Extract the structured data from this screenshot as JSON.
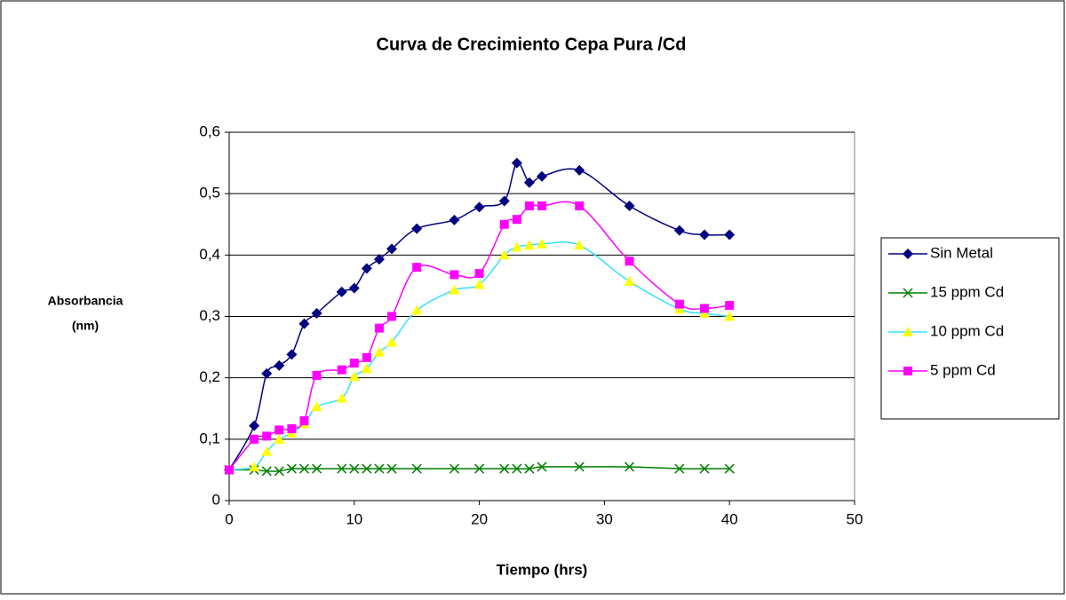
{
  "chart_data": {
    "type": "line",
    "smooth": true,
    "title": "Curva de Crecimiento Cepa Pura /Cd",
    "xlabel": "Tiempo (hrs)",
    "ylabel": [
      "Absorbancia",
      "(nm)"
    ],
    "x": [
      0,
      2,
      3,
      4,
      5,
      6,
      7,
      9,
      10,
      11,
      12,
      13,
      15,
      18,
      20,
      22,
      23,
      24,
      25,
      28,
      32,
      36,
      38,
      40
    ],
    "series": [
      {
        "name": "Sin Metal",
        "color": "#000080",
        "marker": "diamond",
        "values": [
          0.05,
          0.122,
          0.207,
          0.22,
          0.238,
          0.288,
          0.305,
          0.34,
          0.346,
          0.378,
          0.393,
          0.41,
          0.443,
          0.457,
          0.478,
          0.488,
          0.55,
          0.518,
          0.528,
          0.538,
          0.48,
          0.44,
          0.433,
          0.433
        ]
      },
      {
        "name": "15 ppm Cd",
        "color": "#008000",
        "marker": "x",
        "values": [
          0.05,
          0.05,
          0.048,
          0.048,
          0.052,
          0.052,
          0.052,
          0.052,
          0.052,
          0.052,
          0.052,
          0.052,
          0.052,
          0.052,
          0.052,
          0.052,
          0.052,
          0.052,
          0.055,
          0.055,
          0.055,
          0.052,
          0.052,
          0.052
        ]
      },
      {
        "name": "10 ppm Cd",
        "color": "#33e0ff",
        "marker": "triangle",
        "marker_color": "#ffff00",
        "values": [
          0.05,
          0.055,
          0.08,
          0.1,
          0.11,
          0.125,
          0.153,
          0.167,
          0.202,
          0.215,
          0.242,
          0.258,
          0.31,
          0.343,
          0.352,
          0.4,
          0.413,
          0.416,
          0.418,
          0.416,
          0.357,
          0.312,
          0.305,
          0.3
        ]
      },
      {
        "name": "5 ppm Cd",
        "color": "#ff00ff",
        "marker": "square",
        "values": [
          0.05,
          0.1,
          0.105,
          0.115,
          0.117,
          0.13,
          0.204,
          0.213,
          0.224,
          0.233,
          0.281,
          0.3,
          0.38,
          0.368,
          0.37,
          0.45,
          0.458,
          0.48,
          0.48,
          0.48,
          0.39,
          0.32,
          0.313,
          0.318
        ]
      }
    ],
    "xlim": [
      0,
      50
    ],
    "xticks": [
      0,
      10,
      20,
      30,
      40,
      50
    ],
    "ylim": [
      0,
      0.6
    ],
    "yticks": [
      0,
      {
        "value": 0.1,
        "label": "0,1"
      },
      {
        "value": 0.2,
        "label": "0,2"
      },
      {
        "value": 0.3,
        "label": "0,3"
      },
      {
        "value": 0.4,
        "label": "0,4"
      },
      {
        "value": 0.5,
        "label": "0,5"
      },
      {
        "value": 0.6,
        "label": "0,6"
      }
    ],
    "grid": true,
    "legend": "right"
  }
}
